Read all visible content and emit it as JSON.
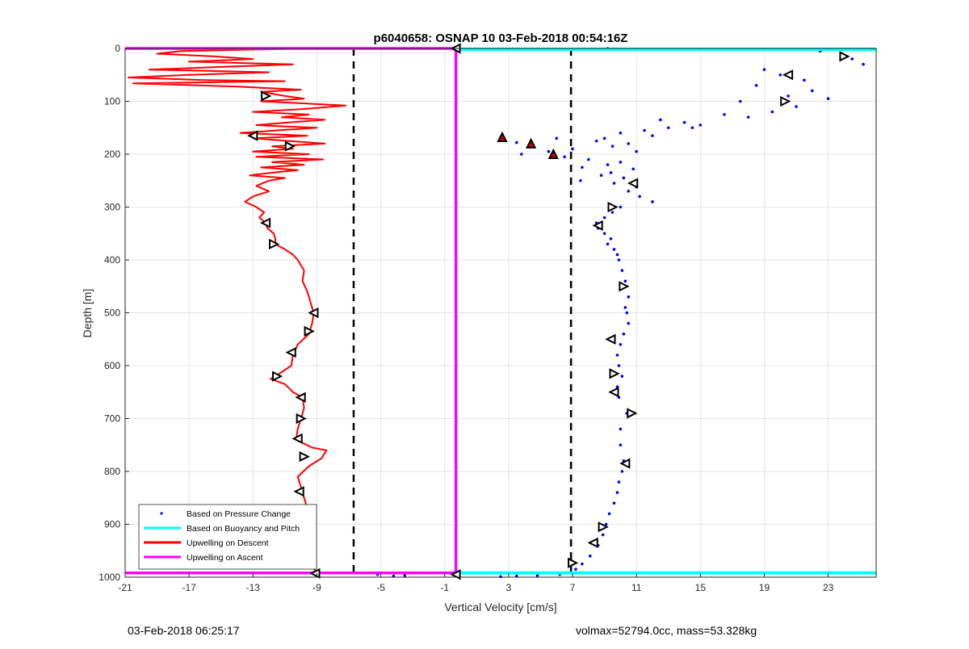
{
  "chart_data": {
    "type": "line",
    "title": "p6040658: OSNAP 10 03-Feb-2018 00:54:16Z",
    "xlabel": "Vertical Velocity [cm/s]",
    "ylabel": "Depth [m]",
    "xlim": [
      -21,
      26
    ],
    "ylim": [
      0,
      1000
    ],
    "y_reversed": true,
    "x_ticks": [
      -21,
      -17,
      -13,
      -9,
      -5,
      -1,
      3,
      7,
      11,
      15,
      19,
      23
    ],
    "y_ticks": [
      0,
      100,
      200,
      300,
      400,
      500,
      600,
      700,
      800,
      900,
      1000
    ],
    "grid": true,
    "legend_position": "bottom-left",
    "reference_lines": [
      -6.7,
      6.9
    ],
    "series": [
      {
        "name": "Based on Pressure Change",
        "style": "points",
        "color": "#0000ff",
        "points": [
          [
            9.2,
            0
          ],
          [
            25.2,
            30
          ],
          [
            23.8,
            10
          ],
          [
            22.5,
            5
          ],
          [
            24.5,
            20
          ],
          [
            19,
            40
          ],
          [
            20,
            50
          ],
          [
            21.5,
            60
          ],
          [
            18.5,
            70
          ],
          [
            22,
            80
          ],
          [
            20.5,
            90
          ],
          [
            17.5,
            100
          ],
          [
            21,
            110
          ],
          [
            19.5,
            120
          ],
          [
            23,
            95
          ],
          [
            16.5,
            125
          ],
          [
            18,
            130
          ],
          [
            14,
            140
          ],
          [
            12.5,
            135
          ],
          [
            15,
            145
          ],
          [
            13,
            150
          ],
          [
            11.5,
            155
          ],
          [
            10,
            160
          ],
          [
            14.5,
            150
          ],
          [
            12,
            165
          ],
          [
            9,
            170
          ],
          [
            2.5,
            168
          ],
          [
            3.5,
            178
          ],
          [
            8.5,
            175
          ],
          [
            6,
            170
          ],
          [
            4.5,
            185
          ],
          [
            10.5,
            180
          ],
          [
            7,
            190
          ],
          [
            5.5,
            195
          ],
          [
            9.5,
            185
          ],
          [
            11,
            195
          ],
          [
            3.8,
            200
          ],
          [
            6.5,
            205
          ],
          [
            8,
            210
          ],
          [
            10,
            215
          ],
          [
            9.2,
            220
          ],
          [
            7.6,
            225
          ],
          [
            10.8,
            228
          ],
          [
            9.4,
            235
          ],
          [
            8.8,
            240
          ],
          [
            10.2,
            245
          ],
          [
            7.5,
            250
          ],
          [
            9.6,
            255
          ],
          [
            11,
            262
          ],
          [
            10.5,
            270
          ],
          [
            11.2,
            280
          ],
          [
            12,
            290
          ],
          [
            10,
            300
          ],
          [
            9.5,
            310
          ],
          [
            9,
            320
          ],
          [
            8.5,
            330
          ],
          [
            8.6,
            340
          ],
          [
            9,
            350
          ],
          [
            9.4,
            360
          ],
          [
            9.2,
            370
          ],
          [
            9.6,
            380
          ],
          [
            9.8,
            390
          ],
          [
            9.9,
            400
          ],
          [
            10.1,
            420
          ],
          [
            10.3,
            440
          ],
          [
            10.2,
            450
          ],
          [
            10.5,
            470
          ],
          [
            10.3,
            490
          ],
          [
            10.4,
            500
          ],
          [
            10.5,
            520
          ],
          [
            10.2,
            540
          ],
          [
            10,
            560
          ],
          [
            9.8,
            580
          ],
          [
            9.9,
            600
          ],
          [
            10.1,
            620
          ],
          [
            9.8,
            640
          ],
          [
            9.9,
            660
          ],
          [
            10.4,
            690
          ],
          [
            10,
            720
          ],
          [
            10,
            750
          ],
          [
            10.2,
            780
          ],
          [
            10.1,
            800
          ],
          [
            9.9,
            820
          ],
          [
            9.8,
            840
          ],
          [
            9.6,
            860
          ],
          [
            9.3,
            880
          ],
          [
            9.1,
            900
          ],
          [
            8.9,
            920
          ],
          [
            8.6,
            940
          ],
          [
            8.1,
            960
          ],
          [
            7.6,
            975
          ],
          [
            7.2,
            985
          ],
          [
            6.2,
            995
          ],
          [
            4.8,
            997
          ],
          [
            3.5,
            998
          ],
          [
            2.5,
            999
          ],
          [
            -5.2,
            995
          ],
          [
            -3.5,
            997
          ],
          [
            -4.2,
            998
          ]
        ]
      },
      {
        "name": "Based on Buoyancy and Pitch",
        "style": "line",
        "color": "#00ffff",
        "points": [
          [
            -0.3,
            0
          ],
          [
            -0.3,
            500
          ],
          [
            -0.3,
            992
          ]
        ]
      },
      {
        "name": "Upwelling on Descent",
        "style": "line",
        "color": "#ff0000",
        "points": [
          [
            -9.6,
            0
          ],
          [
            -17.5,
            5
          ],
          [
            -19,
            10
          ],
          [
            -15.5,
            15
          ],
          [
            -13,
            20
          ],
          [
            -17,
            25
          ],
          [
            -10.5,
            30
          ],
          [
            -15,
            35
          ],
          [
            -19.5,
            40
          ],
          [
            -12,
            45
          ],
          [
            -17,
            50
          ],
          [
            -20.8,
            55
          ],
          [
            -16,
            60
          ],
          [
            -11,
            62
          ],
          [
            -20.5,
            66
          ],
          [
            -14,
            72
          ],
          [
            -10,
            78
          ],
          [
            -12.5,
            82
          ],
          [
            -11,
            90
          ],
          [
            -9.8,
            95
          ],
          [
            -12.5,
            100
          ],
          [
            -7.2,
            108
          ],
          [
            -10,
            115
          ],
          [
            -13,
            120
          ],
          [
            -9.5,
            125
          ],
          [
            -11.2,
            130
          ],
          [
            -8.5,
            135
          ],
          [
            -10.8,
            140
          ],
          [
            -12.8,
            145
          ],
          [
            -9,
            150
          ],
          [
            -11.5,
            155
          ],
          [
            -13.8,
            160
          ],
          [
            -9.6,
            165
          ],
          [
            -12.9,
            170
          ],
          [
            -10.8,
            175
          ],
          [
            -8.5,
            180
          ],
          [
            -11.8,
            185
          ],
          [
            -10.5,
            190
          ],
          [
            -13,
            195
          ],
          [
            -9.5,
            200
          ],
          [
            -12.8,
            205
          ],
          [
            -8.6,
            210
          ],
          [
            -11.8,
            215
          ],
          [
            -9.8,
            220
          ],
          [
            -12.5,
            225
          ],
          [
            -10.2,
            230
          ],
          [
            -11.8,
            235
          ],
          [
            -13.2,
            240
          ],
          [
            -11,
            245
          ],
          [
            -12,
            250
          ],
          [
            -12.8,
            260
          ],
          [
            -12,
            270
          ],
          [
            -13,
            280
          ],
          [
            -13.5,
            290
          ],
          [
            -12.8,
            300
          ],
          [
            -12.3,
            310
          ],
          [
            -12.6,
            320
          ],
          [
            -12.2,
            330
          ],
          [
            -12.1,
            340
          ],
          [
            -11.7,
            350
          ],
          [
            -11.6,
            360
          ],
          [
            -11.6,
            370
          ],
          [
            -11,
            380
          ],
          [
            -10.5,
            390
          ],
          [
            -10.2,
            400
          ],
          [
            -10,
            410
          ],
          [
            -9.8,
            420
          ],
          [
            -9.9,
            440
          ],
          [
            -9.6,
            460
          ],
          [
            -9.4,
            480
          ],
          [
            -9.2,
            500
          ],
          [
            -9.3,
            520
          ],
          [
            -9.5,
            540
          ],
          [
            -10.2,
            560
          ],
          [
            -10.5,
            580
          ],
          [
            -10.6,
            600
          ],
          [
            -11.6,
            620
          ],
          [
            -11.9,
            625
          ],
          [
            -11,
            635
          ],
          [
            -10.5,
            650
          ],
          [
            -9.9,
            660
          ],
          [
            -9.8,
            680
          ],
          [
            -10,
            700
          ],
          [
            -10.2,
            720
          ],
          [
            -10.3,
            740
          ],
          [
            -9.3,
            755
          ],
          [
            -8.4,
            760
          ],
          [
            -8.7,
            775
          ],
          [
            -9.5,
            790
          ],
          [
            -10.2,
            810
          ],
          [
            -10,
            830
          ],
          [
            -9.8,
            850
          ],
          [
            -9.6,
            870
          ],
          [
            -10,
            890
          ],
          [
            -9.8,
            910
          ],
          [
            -10.3,
            930
          ],
          [
            -9.9,
            950
          ],
          [
            -9.3,
            970
          ],
          [
            -9.1,
            980
          ],
          [
            -9.2,
            995
          ]
        ]
      },
      {
        "name": "Upwelling on Ascent",
        "style": "line",
        "color": "#ff00ff",
        "points": [
          [
            -21,
            0
          ],
          [
            -0.3,
            0
          ],
          [
            -0.3,
            992
          ],
          [
            -21,
            992
          ]
        ]
      }
    ],
    "markers": {
      "descent": [
        [
          -12.2,
          90
        ],
        [
          -13,
          165
        ],
        [
          -10.7,
          185
        ],
        [
          -12.2,
          330
        ],
        [
          -11.7,
          370
        ],
        [
          -9.2,
          500
        ],
        [
          -9.5,
          535
        ],
        [
          -10.6,
          575
        ],
        [
          -11.5,
          620
        ],
        [
          -10,
          660
        ],
        [
          -10,
          700
        ],
        [
          -10.2,
          738
        ],
        [
          -9.8,
          772
        ],
        [
          -10.1,
          838
        ],
        [
          -10.6,
          930
        ],
        [
          -9.1,
          993
        ]
      ],
      "ascent": [
        [
          -0.3,
          0
        ],
        [
          24.0,
          15
        ],
        [
          20.5,
          50
        ],
        [
          20.3,
          100
        ],
        [
          10.8,
          255
        ],
        [
          9.5,
          300
        ],
        [
          8.6,
          335
        ],
        [
          10.2,
          450
        ],
        [
          9.4,
          550
        ],
        [
          9.6,
          615
        ],
        [
          9.6,
          650
        ],
        [
          10.7,
          690
        ],
        [
          10.3,
          785
        ],
        [
          8.9,
          905
        ],
        [
          8.3,
          935
        ],
        [
          7,
          973
        ],
        [
          -0.3,
          995
        ]
      ],
      "ascent_filled": [
        [
          2.6,
          168
        ],
        [
          4.4,
          180
        ],
        [
          5.8,
          200
        ]
      ]
    }
  },
  "footer": {
    "left": "03-Feb-2018 06:25:17",
    "right": "volmax=52794.0cc, mass=53.328kg"
  }
}
